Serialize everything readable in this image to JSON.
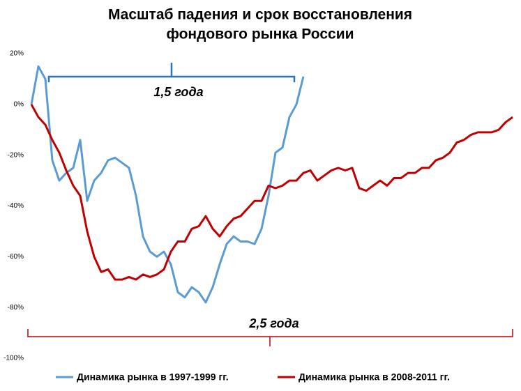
{
  "chart_data": {
    "type": "line",
    "title": [
      "Масштаб падения и срок восстановления",
      "фондового рынка России"
    ],
    "annotations": [
      "1,5 года",
      "2,5 года"
    ],
    "ylim": [
      -100,
      20
    ],
    "yticks": [
      {
        "value": 20,
        "label": "20%"
      },
      {
        "value": 0,
        "label": "0%"
      },
      {
        "value": -20,
        "label": "-20%"
      },
      {
        "value": -40,
        "label": "-40%"
      },
      {
        "value": -60,
        "label": "-60%"
      },
      {
        "value": -80,
        "label": "-80%"
      },
      {
        "value": -100,
        "label": "-100%"
      }
    ],
    "grid": false,
    "legend": "bottom",
    "series": [
      {
        "name": "Динамика рынка в 1997-1999 гг.",
        "color": "#5b9bd5",
        "values": [
          0,
          15,
          10,
          -22,
          -30,
          -27,
          -25,
          -14,
          -38,
          -30,
          -27,
          -22,
          -21,
          -23,
          -25,
          -36,
          -52,
          -58,
          -60,
          -58,
          -63,
          -74,
          -76,
          -72,
          -74,
          -78,
          -72,
          -63,
          -55,
          -52,
          -54,
          -54,
          -55,
          -49,
          -36,
          -19,
          -17,
          -5,
          0,
          11,
          null,
          null,
          null,
          null,
          null,
          null,
          null,
          null,
          null,
          null,
          null,
          null,
          null,
          null,
          null,
          null,
          null,
          null,
          null,
          null,
          null,
          null,
          null,
          null,
          null,
          null,
          null,
          null,
          null,
          null
        ]
      },
      {
        "name": "Динамика рынка в 2008-2011 гг.",
        "color": "#c00000",
        "values": [
          0,
          -5,
          -8,
          -14,
          -19,
          -26,
          -32,
          -36,
          -50,
          -60,
          -66,
          -65,
          -69,
          -69,
          -68,
          -69,
          -67,
          -68,
          -67,
          -65,
          -58,
          -54,
          -54,
          -49,
          -48,
          -44,
          -49,
          -52,
          -48,
          -45,
          -44,
          -41,
          -38,
          -38,
          -32,
          -33,
          -32,
          -30,
          -30,
          -27,
          -26,
          -30,
          -28,
          -26,
          -25,
          -26,
          -25,
          -33,
          -34,
          -32,
          -30,
          -32,
          -29,
          -29,
          -27,
          -27,
          -25,
          -25,
          -22,
          -21,
          -19,
          -15,
          -14,
          -12,
          -11,
          -11,
          -11,
          -10,
          -7,
          -5
        ]
      }
    ]
  }
}
